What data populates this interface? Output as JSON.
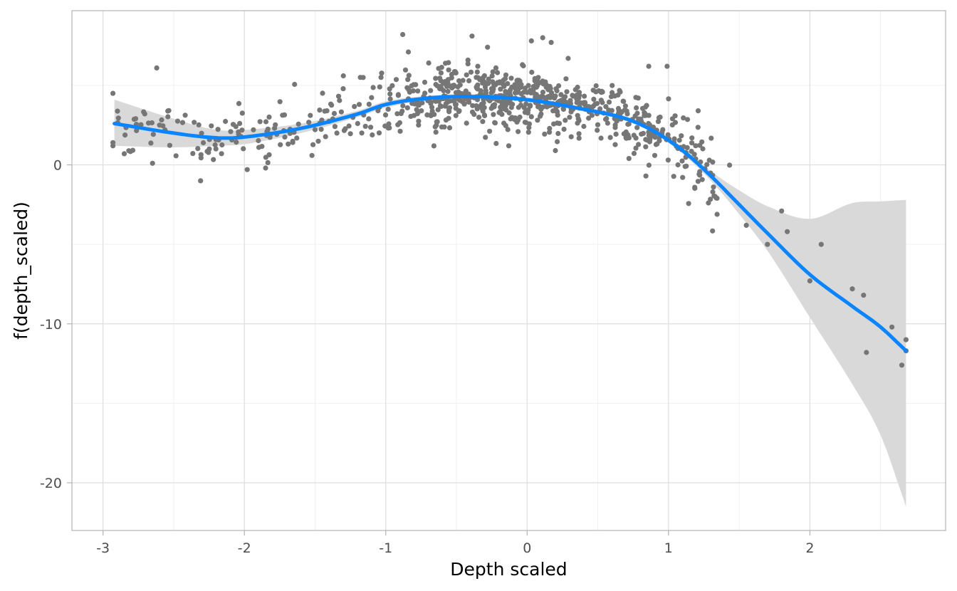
{
  "chart_data": {
    "type": "scatter",
    "title": "",
    "xlabel": "Depth scaled",
    "ylabel": "f(depth_scaled)",
    "xlim": [
      -3.22,
      2.96
    ],
    "ylim": [
      -23.0,
      9.7
    ],
    "x_ticks": [
      -3,
      -2,
      -1,
      0,
      1,
      2
    ],
    "x_tick_labels": [
      "-3",
      "-2",
      "-1",
      "0",
      "1",
      "2"
    ],
    "y_ticks": [
      -20,
      -10,
      0
    ],
    "y_tick_labels": [
      "-20",
      "-10",
      "0"
    ],
    "grid": true,
    "legend": "none",
    "colors": {
      "points": "#767676",
      "smooth_line": "#0a84ff",
      "confidence_band": "#d9d9d9",
      "grid_major": "#dedede",
      "grid_minor": "#f0f0f0",
      "panel_border": "#b3b3b3"
    },
    "smooth": {
      "x": [
        -2.92,
        -2.5,
        -2.2,
        -2.0,
        -1.6,
        -1.2,
        -1.0,
        -0.7,
        -0.4,
        0.0,
        0.4,
        0.7,
        0.9,
        1.1,
        1.3,
        1.5,
        1.7,
        2.0,
        2.3,
        2.5,
        2.68
      ],
      "y": [
        2.6,
        2.0,
        1.7,
        1.75,
        2.3,
        3.2,
        3.8,
        4.2,
        4.3,
        4.1,
        3.5,
        2.9,
        2.1,
        0.9,
        -0.7,
        -2.5,
        -4.3,
        -6.9,
        -8.9,
        -10.2,
        -11.7
      ],
      "lower": [
        1.2,
        1.1,
        1.2,
        1.3,
        2.0,
        3.0,
        3.6,
        4.05,
        4.15,
        3.95,
        3.35,
        2.75,
        1.95,
        0.7,
        -1.0,
        -3.1,
        -5.4,
        -9.6,
        -13.8,
        -17.0,
        -21.5
      ],
      "upper": [
        4.1,
        2.9,
        2.2,
        2.2,
        2.6,
        3.4,
        4.0,
        4.35,
        4.45,
        4.25,
        3.65,
        3.05,
        2.25,
        1.1,
        -0.4,
        -1.6,
        -2.6,
        -3.4,
        -2.4,
        -2.3,
        -2.2
      ]
    },
    "outlier_points": [
      {
        "x": -2.93,
        "y": 4.5
      },
      {
        "x": -2.93,
        "y": 1.4
      },
      {
        "x": -2.93,
        "y": 1.2
      },
      {
        "x": -2.85,
        "y": 0.7
      },
      {
        "x": -2.65,
        "y": 0.1
      },
      {
        "x": -2.62,
        "y": 6.1
      },
      {
        "x": -2.6,
        "y": 2.5
      },
      {
        "x": -2.31,
        "y": -1.0
      },
      {
        "x": -1.98,
        "y": -0.3
      },
      {
        "x": -1.85,
        "y": -0.2
      },
      {
        "x": -1.3,
        "y": 5.6
      },
      {
        "x": -1.16,
        "y": 5.5
      },
      {
        "x": -0.88,
        "y": 8.2
      },
      {
        "x": -0.84,
        "y": 7.1
      },
      {
        "x": -0.39,
        "y": 8.1
      },
      {
        "x": -0.28,
        "y": 7.4
      },
      {
        "x": 0.03,
        "y": 7.8
      },
      {
        "x": 0.11,
        "y": 8.0
      },
      {
        "x": 0.17,
        "y": 7.7
      },
      {
        "x": 0.29,
        "y": 6.7
      },
      {
        "x": 0.2,
        "y": 0.9
      },
      {
        "x": -0.13,
        "y": 1.2
      },
      {
        "x": 0.86,
        "y": 6.2
      },
      {
        "x": 0.99,
        "y": 6.2
      },
      {
        "x": 0.72,
        "y": 0.4
      },
      {
        "x": 0.84,
        "y": -0.7
      },
      {
        "x": 1.21,
        "y": 3.4
      },
      {
        "x": 1.84,
        "y": -4.2
      },
      {
        "x": 1.8,
        "y": -2.9
      },
      {
        "x": 2.0,
        "y": -7.3
      },
      {
        "x": 2.08,
        "y": -5.0
      },
      {
        "x": 2.3,
        "y": -7.8
      },
      {
        "x": 2.38,
        "y": -8.2
      },
      {
        "x": 2.4,
        "y": -11.8
      },
      {
        "x": 2.58,
        "y": -10.2
      },
      {
        "x": 2.65,
        "y": -12.6
      },
      {
        "x": 2.68,
        "y": -11.0
      },
      {
        "x": 2.68,
        "y": -11.7
      },
      {
        "x": 1.55,
        "y": -3.8
      },
      {
        "x": 1.7,
        "y": -5.0
      }
    ],
    "scatter_cloud": {
      "count": 820,
      "x_range": [
        -2.9,
        2.7
      ],
      "spread_low_x": 0.9,
      "spread_high_x": 1.5
    }
  }
}
